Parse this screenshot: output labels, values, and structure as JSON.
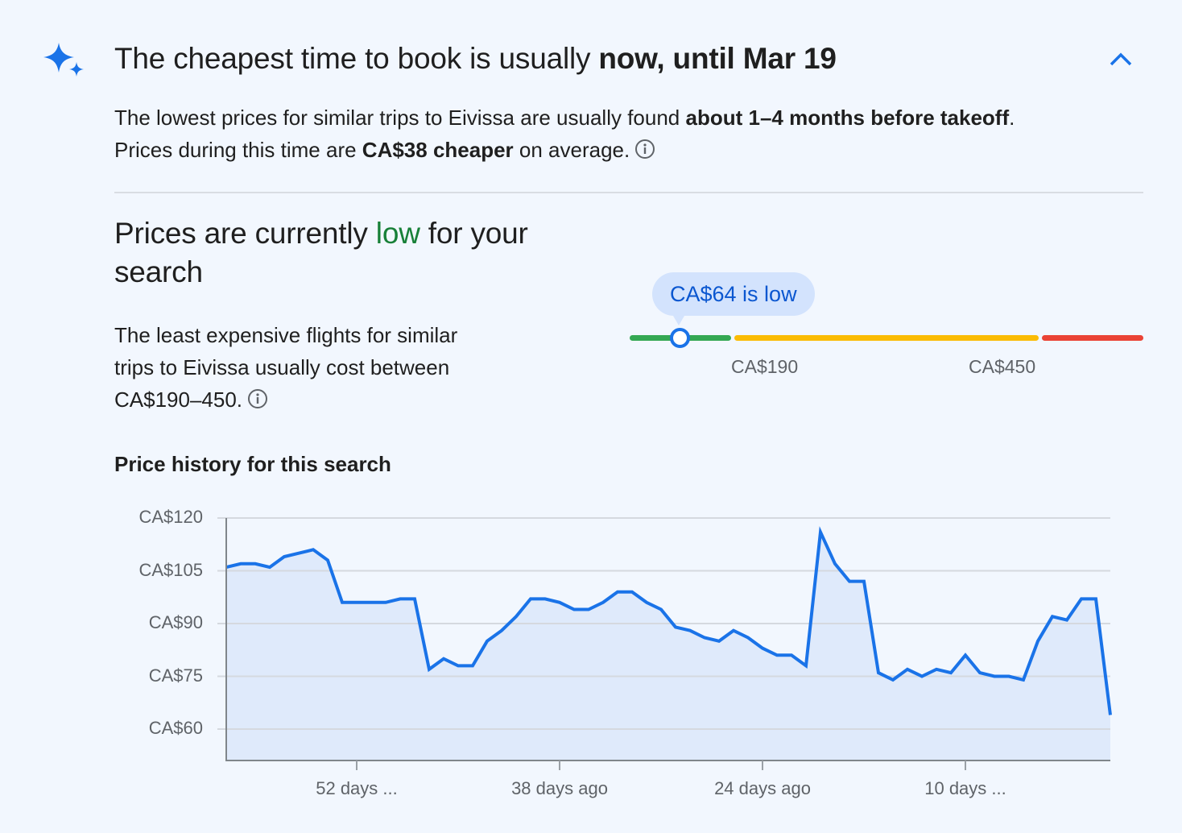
{
  "header": {
    "title_prefix": "The cheapest time to book is usually ",
    "title_bold": "now, until Mar 19",
    "collapse_icon": "chevron-up-icon",
    "sparkle_icon": "ai-sparkle-icon"
  },
  "summary": {
    "part1": "The lowest prices for similar trips to Eivissa are usually found ",
    "bold1": "about 1–4 months before takeoff",
    "part2": ". Prices during this time are ",
    "bold2": "CA$38 cheaper",
    "part3": " on average.",
    "info_icon": "info-icon"
  },
  "price_level": {
    "title_prefix": "Prices are currently ",
    "title_level": "low",
    "title_suffix": " for your search",
    "description": "The least expensive flights for similar trips to Eivissa usually cost between CA$190–450.",
    "info_icon": "info-icon",
    "current_price_bubble": "CA$64 is low",
    "range_low_label": "CA$190",
    "range_high_label": "CA$450",
    "colors": {
      "low": "#34a853",
      "typical": "#fbbc04",
      "high": "#ea4335",
      "marker": "#1a73e8",
      "low_text": "#188038"
    }
  },
  "history": {
    "title": "Price history for this search"
  },
  "chart_data": {
    "type": "area",
    "title": "Price history for this search",
    "xlabel": "",
    "ylabel": "",
    "yticks": [
      "CA$120",
      "CA$105",
      "CA$90",
      "CA$75",
      "CA$60"
    ],
    "ytick_values": [
      120,
      105,
      90,
      75,
      60
    ],
    "ylim": [
      51,
      120
    ],
    "xticks": [
      "52 days ...",
      "38 days ago",
      "24 days ago",
      "10 days ..."
    ],
    "xtick_days_ago": [
      52,
      38,
      24,
      10
    ],
    "grid": true,
    "series": [
      {
        "name": "Price (CA$)",
        "color": "#1a73e8",
        "fill": "#dfeafb",
        "days_ago": [
          61,
          60,
          59,
          58,
          57,
          56,
          55,
          54,
          53,
          52,
          51,
          50,
          49,
          48,
          47,
          46,
          45,
          44,
          43,
          42,
          41,
          40,
          39,
          38,
          37,
          36,
          35,
          34,
          33,
          32,
          31,
          30,
          29,
          28,
          27,
          26,
          25,
          24,
          23,
          22,
          21,
          20,
          19,
          18,
          17,
          16,
          15,
          14,
          13,
          12,
          11,
          10,
          9,
          8,
          7,
          6,
          5,
          4,
          3,
          2,
          1,
          0
        ],
        "values": [
          106,
          107,
          107,
          106,
          109,
          110,
          111,
          108,
          96,
          96,
          96,
          96,
          97,
          97,
          77,
          80,
          78,
          78,
          85,
          88,
          92,
          97,
          97,
          96,
          94,
          94,
          96,
          99,
          99,
          96,
          94,
          89,
          88,
          86,
          85,
          88,
          86,
          83,
          81,
          81,
          78,
          116,
          107,
          102,
          102,
          76,
          74,
          77,
          75,
          77,
          76,
          81,
          76,
          75,
          75,
          74,
          85,
          92,
          91,
          97,
          97,
          64
        ]
      }
    ]
  }
}
